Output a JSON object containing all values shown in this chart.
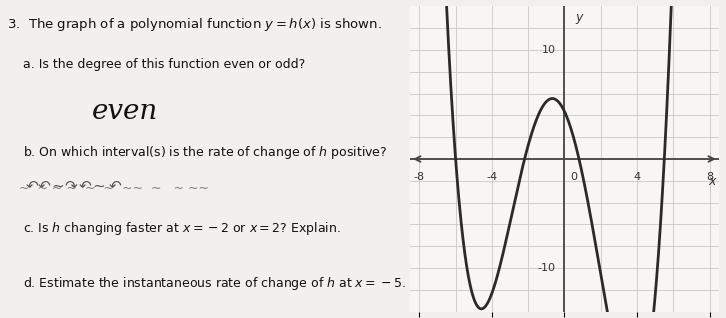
{
  "title_text": "3.  The graph of a polynomial function $y = h(x)$ is shown.",
  "question_a": "a. Is the degree of this function even or odd?",
  "answer_a": "even",
  "question_b": "b. On which interval(s) is the rate of change of $h$ positive?",
  "question_c": "c. Is $h$ changing faster at $x = -2$ or $x = 2$? Explain.",
  "question_d": "d. Estimate the instantaneous rate of change of $h$ at $x = -5$.",
  "graph_xlim": [
    -8.5,
    8.5
  ],
  "graph_ylim": [
    -14,
    14
  ],
  "graph_xticks": [
    -8,
    -4,
    0,
    4,
    8
  ],
  "graph_ytick_pos": [
    10
  ],
  "graph_ytick_neg": [
    -10
  ],
  "curve_color": "#2a2a2a",
  "grid_color": "#c8c8c8",
  "axis_color": "#444444",
  "bg_color": "#f2f0ec",
  "text_color": "#111111",
  "poly_a": 0.075,
  "poly_roots": [
    -6.0,
    -2.2,
    0.8,
    5.5
  ]
}
